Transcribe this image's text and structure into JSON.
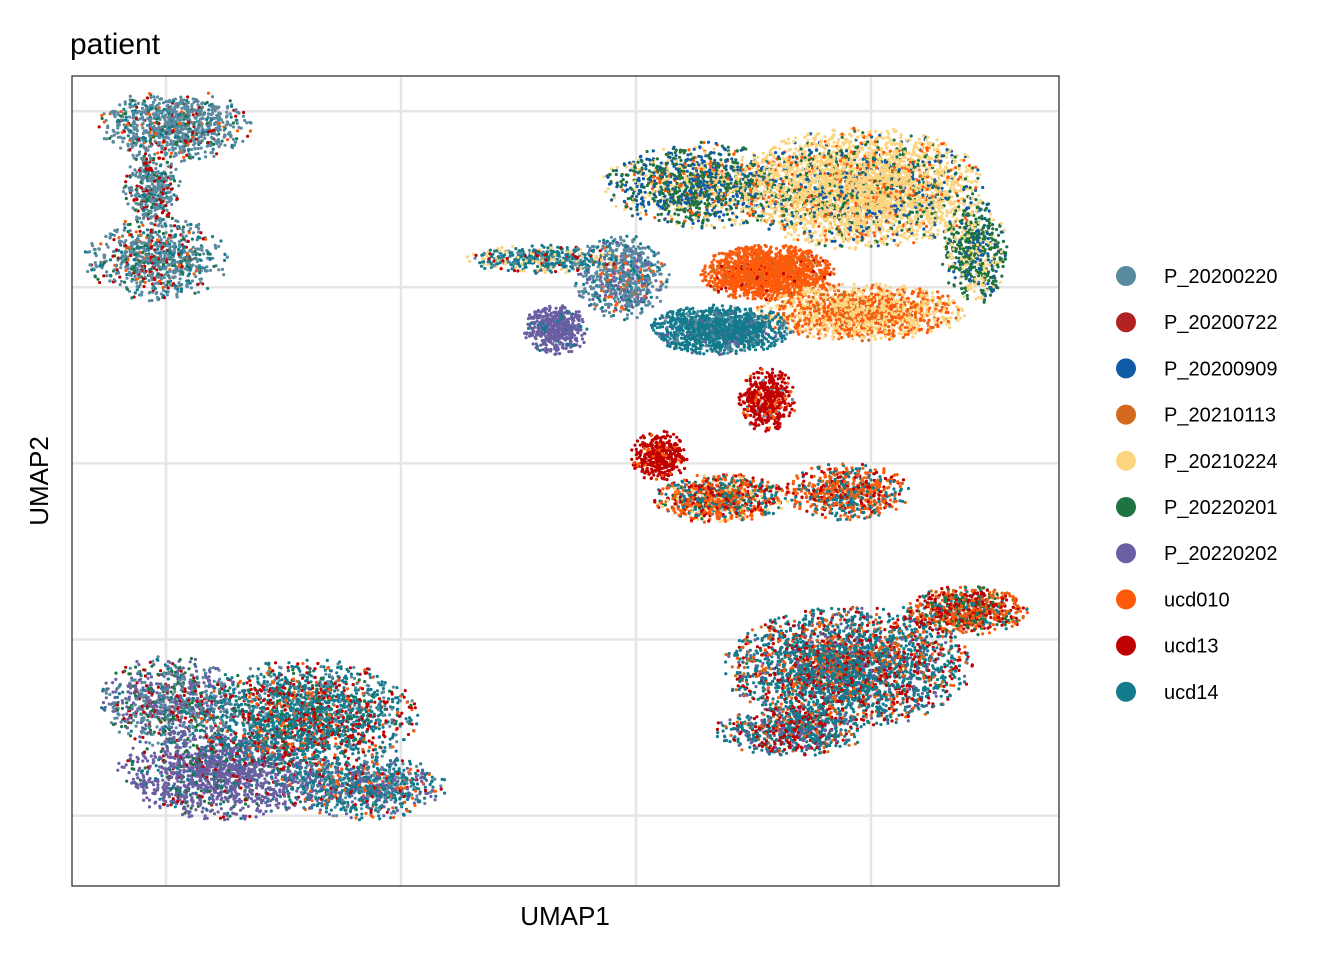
{
  "chart_data": {
    "type": "scatter",
    "title": "patient",
    "xlabel": "UMAP1",
    "ylabel": "UMAP2",
    "xlim": [
      -8,
      13
    ],
    "ylim": [
      -14,
      9
    ],
    "x_gridlines": [
      -6,
      -1,
      4,
      9
    ],
    "y_gridlines": [
      -12,
      -7,
      -2,
      3,
      8
    ],
    "grid": true,
    "tick_labels_shown": false,
    "legend_position": "right",
    "series": [
      {
        "name": "P_20200220",
        "color": "#5A8AA0"
      },
      {
        "name": "P_20200722",
        "color": "#B22222"
      },
      {
        "name": "P_20200909",
        "color": "#0F5BA5"
      },
      {
        "name": "P_20210113",
        "color": "#D2691E"
      },
      {
        "name": "P_20210224",
        "color": "#FCD581"
      },
      {
        "name": "P_20220201",
        "color": "#1E7340"
      },
      {
        "name": "P_20220202",
        "color": "#6A5FA3"
      },
      {
        "name": "ucd010",
        "color": "#FF5A0A"
      },
      {
        "name": "ucd13",
        "color": "#C00000"
      },
      {
        "name": "ucd14",
        "color": "#137B8C"
      }
    ],
    "clusters": [
      {
        "cx": -5.8,
        "cy": 7.6,
        "rx": 1.6,
        "ry": 1.0,
        "n": 900,
        "mix": {
          "P_20200220": 0.7,
          "ucd14": 0.1,
          "ucd13": 0.08,
          "P_20220201": 0.06,
          "ucd010": 0.06
        }
      },
      {
        "cx": -6.3,
        "cy": 5.8,
        "rx": 0.6,
        "ry": 1.1,
        "n": 400,
        "mix": {
          "P_20200220": 0.6,
          "ucd13": 0.2,
          "ucd14": 0.1,
          "P_20220201": 0.1
        }
      },
      {
        "cx": -6.2,
        "cy": 3.8,
        "rx": 1.5,
        "ry": 1.2,
        "n": 800,
        "mix": {
          "P_20200220": 0.55,
          "ucd14": 0.2,
          "ucd13": 0.12,
          "P_20220201": 0.08,
          "ucd010": 0.05
        }
      },
      {
        "cx": -5.9,
        "cy": -8.8,
        "rx": 1.5,
        "ry": 1.3,
        "n": 900,
        "mix": {
          "P_20200220": 0.35,
          "P_20220202": 0.3,
          "P_20220201": 0.15,
          "ucd13": 0.1,
          "ucd14": 0.1
        }
      },
      {
        "cx": -4.8,
        "cy": -10.8,
        "rx": 2.2,
        "ry": 1.3,
        "n": 1500,
        "mix": {
          "P_20220202": 0.75,
          "ucd14": 0.1,
          "P_20220201": 0.1,
          "ucd13": 0.05
        }
      },
      {
        "cx": -3.0,
        "cy": -9.2,
        "rx": 2.3,
        "ry": 1.6,
        "n": 2000,
        "mix": {
          "ucd14": 0.5,
          "ucd13": 0.2,
          "P_20200220": 0.15,
          "ucd010": 0.08,
          "P_20220201": 0.07
        }
      },
      {
        "cx": -1.8,
        "cy": -11.2,
        "rx": 1.8,
        "ry": 0.9,
        "n": 900,
        "mix": {
          "ucd14": 0.45,
          "P_20220202": 0.25,
          "P_20200220": 0.15,
          "ucd010": 0.1,
          "ucd13": 0.05
        }
      },
      {
        "cx": 5.4,
        "cy": 5.9,
        "rx": 2.1,
        "ry": 1.2,
        "n": 1300,
        "mix": {
          "P_20220201": 0.4,
          "P_20200909": 0.3,
          "P_20210224": 0.2,
          "ucd010": 0.1
        }
      },
      {
        "cx": 8.8,
        "cy": 5.8,
        "rx": 2.6,
        "ry": 1.7,
        "n": 3500,
        "mix": {
          "P_20210224": 0.7,
          "P_20200909": 0.1,
          "P_20220201": 0.1,
          "ucd010": 0.1
        }
      },
      {
        "cx": 11.2,
        "cy": 4.0,
        "rx": 0.7,
        "ry": 1.5,
        "n": 600,
        "mix": {
          "P_20220201": 0.5,
          "P_20210224": 0.3,
          "P_20200909": 0.2
        }
      },
      {
        "cx": 6.8,
        "cy": 3.4,
        "rx": 1.4,
        "ry": 0.8,
        "n": 1600,
        "mix": {
          "ucd010": 0.85,
          "P_20210113": 0.1,
          "ucd13": 0.05
        }
      },
      {
        "cx": 8.8,
        "cy": 2.3,
        "rx": 2.2,
        "ry": 0.8,
        "n": 1600,
        "mix": {
          "P_20210224": 0.55,
          "ucd010": 0.35,
          "P_20210113": 0.1
        }
      },
      {
        "cx": 5.8,
        "cy": 1.8,
        "rx": 1.5,
        "ry": 0.7,
        "n": 1300,
        "mix": {
          "ucd14": 0.85,
          "P_20200220": 0.1,
          "P_20220202": 0.05
        }
      },
      {
        "cx": 3.7,
        "cy": 3.3,
        "rx": 1.0,
        "ry": 1.2,
        "n": 700,
        "mix": {
          "P_20200220": 0.55,
          "ucd14": 0.2,
          "P_20220202": 0.15,
          "ucd010": 0.1
        }
      },
      {
        "cx": 2.0,
        "cy": 3.8,
        "rx": 1.6,
        "ry": 0.4,
        "n": 450,
        "mix": {
          "ucd14": 0.5,
          "P_20210224": 0.25,
          "P_20200220": 0.15,
          "ucd13": 0.1
        }
      },
      {
        "cx": 2.3,
        "cy": 1.8,
        "rx": 0.7,
        "ry": 0.7,
        "n": 500,
        "mix": {
          "P_20220202": 0.9,
          "ucd14": 0.1
        }
      },
      {
        "cx": 6.8,
        "cy": -0.2,
        "rx": 0.6,
        "ry": 0.9,
        "n": 450,
        "mix": {
          "ucd13": 0.85,
          "ucd010": 0.1,
          "P_20200220": 0.05
        }
      },
      {
        "cx": 4.5,
        "cy": -1.8,
        "rx": 0.6,
        "ry": 0.7,
        "n": 400,
        "mix": {
          "ucd13": 0.9,
          "ucd010": 0.1
        }
      },
      {
        "cx": 5.8,
        "cy": -3.0,
        "rx": 1.4,
        "ry": 0.7,
        "n": 900,
        "mix": {
          "ucd010": 0.35,
          "ucd14": 0.3,
          "ucd13": 0.2,
          "P_20210224": 0.1,
          "P_20220201": 0.05
        }
      },
      {
        "cx": 8.5,
        "cy": -2.8,
        "rx": 1.3,
        "ry": 0.8,
        "n": 700,
        "mix": {
          "ucd010": 0.4,
          "ucd14": 0.3,
          "ucd13": 0.2,
          "P_20210113": 0.1
        }
      },
      {
        "cx": 8.5,
        "cy": -7.8,
        "rx": 2.6,
        "ry": 1.7,
        "n": 3000,
        "mix": {
          "ucd14": 0.55,
          "ucd13": 0.2,
          "P_20210113": 0.1,
          "P_20220202": 0.08,
          "ucd010": 0.07
        }
      },
      {
        "cx": 11.0,
        "cy": -6.2,
        "rx": 1.3,
        "ry": 0.7,
        "n": 800,
        "mix": {
          "ucd13": 0.3,
          "ucd010": 0.25,
          "P_20220201": 0.2,
          "P_20210113": 0.15,
          "ucd14": 0.1
        }
      },
      {
        "cx": 7.3,
        "cy": -9.6,
        "rx": 1.6,
        "ry": 0.7,
        "n": 700,
        "mix": {
          "ucd14": 0.5,
          "ucd13": 0.25,
          "P_20220202": 0.15,
          "P_20210113": 0.1
        }
      }
    ]
  }
}
